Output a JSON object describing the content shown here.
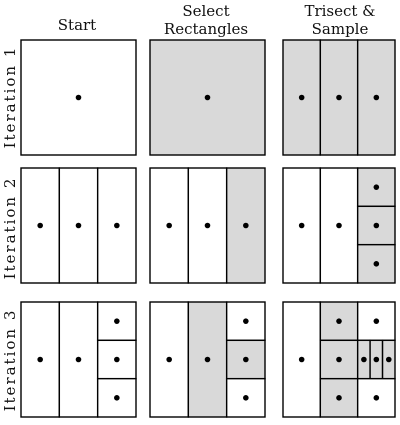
{
  "columns": [
    {
      "lines": [
        "Start"
      ]
    },
    {
      "lines": [
        "Select",
        "Rectangles"
      ]
    },
    {
      "lines": [
        "Trisect &",
        "Sample"
      ]
    }
  ],
  "rows": [
    {
      "label": "Iteration 1"
    },
    {
      "label": "Iteration 2"
    },
    {
      "label": "Iteration 3"
    }
  ],
  "colors": {
    "shaded": "#d9d9d9",
    "background": "#ffffff",
    "stroke": "#000000",
    "dot": "#000000"
  }
}
